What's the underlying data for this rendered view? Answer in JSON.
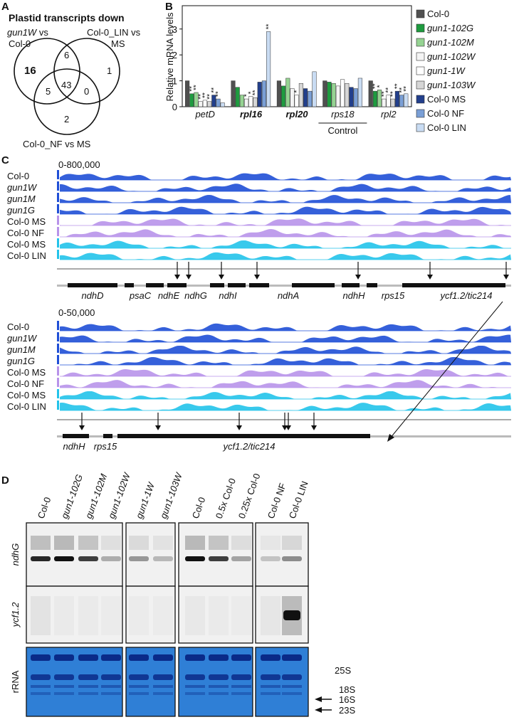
{
  "panel_labels": [
    "A",
    "B",
    "C",
    "D"
  ],
  "panel_a": {
    "title": "Plastid transcripts down",
    "sets": [
      {
        "gene": "gun1W",
        "rest": "vs",
        "line2": "Col-0"
      },
      {
        "line1": "Col-0_LIN vs",
        "line2": "MS"
      },
      {
        "line1": "Col-0_NF vs MS"
      }
    ],
    "regions": {
      "a_only": "16",
      "ab": "6",
      "b_only": "1",
      "ac": "5",
      "abc": "43",
      "bc": "0",
      "c_only": "2"
    }
  },
  "chart_data": {
    "type": "bar",
    "ylabel": "Relative mRNA levels",
    "categories": [
      "petD",
      "rpl16",
      "rpl20",
      "rps18",
      "rpl2"
    ],
    "categories_bold": [
      false,
      true,
      true,
      false,
      false
    ],
    "group_note": "Control",
    "ylim": [
      0,
      3.9
    ],
    "yticks": [
      0,
      1,
      2,
      3
    ],
    "series": [
      {
        "name": "Col-0",
        "italic": false,
        "color": "#505050",
        "values": [
          1.0,
          1.0,
          1.0,
          1.0,
          1.0
        ],
        "significance": [
          null,
          null,
          null,
          null,
          null
        ]
      },
      {
        "name": "gun1-102G",
        "italic": true,
        "color": "#1e9b3f",
        "values": [
          0.5,
          0.75,
          0.8,
          0.95,
          0.6
        ],
        "significance": [
          "**",
          null,
          null,
          null,
          "**"
        ]
      },
      {
        "name": "gun1-102M",
        "italic": true,
        "color": "#95d392",
        "values": [
          0.55,
          0.45,
          1.1,
          0.9,
          0.65
        ],
        "significance": [
          "**",
          null,
          null,
          null,
          "*"
        ]
      },
      {
        "name": "gun1-102W",
        "italic": true,
        "color": "#f4f4f4",
        "values": [
          0.2,
          0.3,
          0.7,
          0.8,
          0.3
        ],
        "significance": [
          "**",
          "*",
          null,
          null,
          "**"
        ]
      },
      {
        "name": "gun1-1W",
        "italic": true,
        "color": "#ffffff",
        "values": [
          0.25,
          0.4,
          0.45,
          1.05,
          0.45
        ],
        "significance": [
          "**",
          "*",
          "*",
          null,
          "**"
        ]
      },
      {
        "name": "gun1-103W",
        "italic": true,
        "color": "#d6d6d6",
        "values": [
          0.2,
          0.35,
          0.9,
          0.9,
          0.3
        ],
        "significance": [
          "**",
          "**",
          null,
          null,
          "**"
        ]
      },
      {
        "name": "Col-0 MS",
        "italic": false,
        "color": "#223f8c",
        "values": [
          0.45,
          0.95,
          0.7,
          0.75,
          0.6
        ],
        "significance": [
          "**",
          null,
          null,
          null,
          "**"
        ]
      },
      {
        "name": "Col-0 NF",
        "italic": false,
        "color": "#7a9fd6",
        "values": [
          0.3,
          1.0,
          0.6,
          0.7,
          0.45
        ],
        "significance": [
          "**",
          null,
          null,
          null,
          "**"
        ]
      },
      {
        "name": "Col-0 LIN",
        "italic": false,
        "color": "#c9dcf3",
        "values": [
          0.15,
          2.9,
          1.35,
          1.1,
          0.5
        ],
        "significance": [
          null,
          "**",
          null,
          null,
          "**"
        ]
      }
    ]
  },
  "panel_c": {
    "scale_top": "0-800,000",
    "scale_bottom": "0-50,000",
    "tracks": [
      {
        "name": "Col-0",
        "italic": false
      },
      {
        "name": "gun1W",
        "italic": true
      },
      {
        "name": "gun1M",
        "italic": true
      },
      {
        "name": "gun1G",
        "italic": true
      },
      {
        "name": "Col-0 MS",
        "italic": false
      },
      {
        "name": "Col-0 NF",
        "italic": false
      },
      {
        "name": "Col-0 MS",
        "italic": false
      },
      {
        "name": "Col-0 LIN",
        "italic": false
      }
    ],
    "genes_top": [
      "ndhD",
      "psaC",
      "ndhE",
      "ndhG",
      "ndhI",
      "ndhA",
      "ndhH",
      "rps15",
      "ycf1.2/tic214"
    ],
    "genes_bottom": [
      "ndhH",
      "rps15",
      "ycf1.2/tic214"
    ]
  },
  "panel_d": {
    "lanes": [
      {
        "name": "Col-0",
        "italic": false
      },
      {
        "name": "gun1-102G",
        "italic": true
      },
      {
        "name": "gun1-102M",
        "italic": true
      },
      {
        "name": "gun1-102W",
        "italic": true
      },
      {
        "name": "gun1-1W",
        "italic": true
      },
      {
        "name": "gun1-103W",
        "italic": true
      },
      {
        "name": "Col-0",
        "italic": false
      },
      {
        "name": "0.5x Col-0",
        "italic": false
      },
      {
        "name": "0.25x Col-0",
        "italic": false
      },
      {
        "name": "Col-0 NF",
        "italic": false
      },
      {
        "name": "Col-0 LIN",
        "italic": false
      }
    ],
    "rows": [
      {
        "name": "ndhG",
        "italic": true
      },
      {
        "name": "ycf1.2",
        "italic": true
      },
      {
        "name": "rRNA",
        "italic": false
      }
    ],
    "markers": [
      "25S",
      "18S",
      "16S",
      "23S"
    ]
  }
}
